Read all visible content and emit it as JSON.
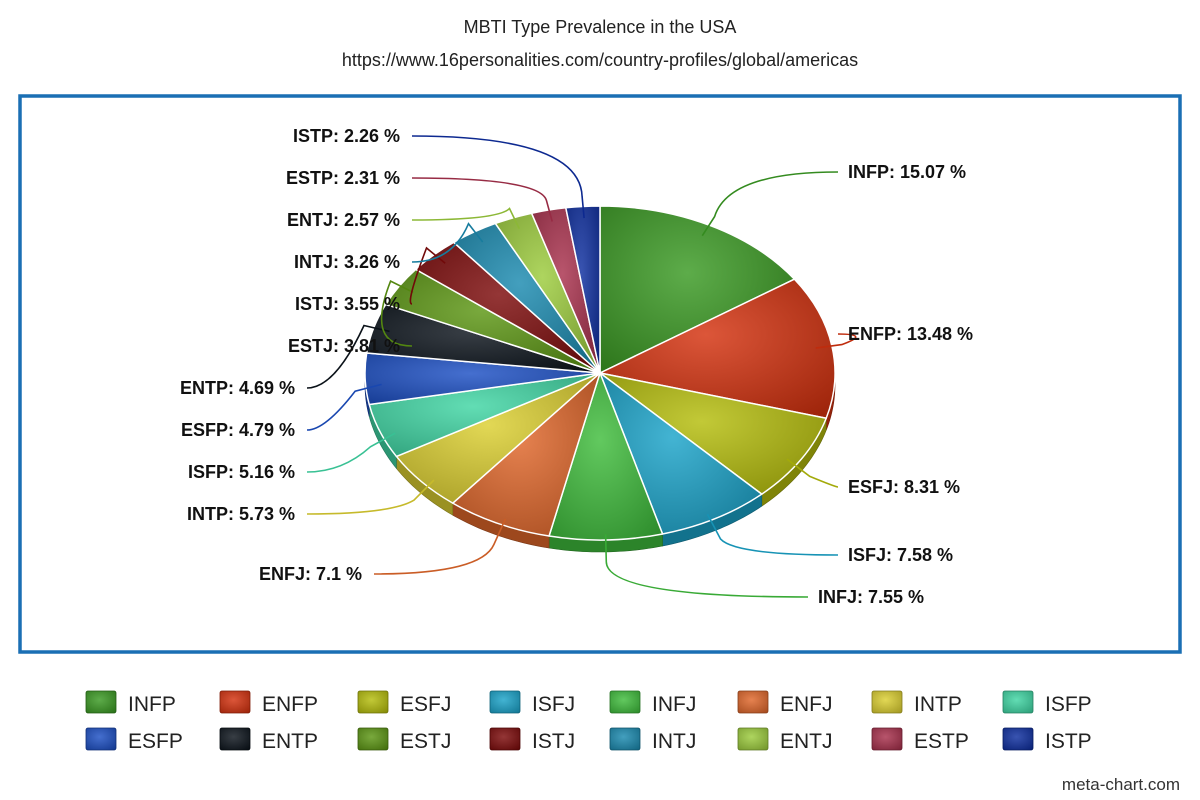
{
  "chart_data": {
    "type": "pie",
    "title": "MBTI Type Prevalence in the USA",
    "subtitle": "https://www.16personalities.com/country-profiles/global/americas",
    "credit": "meta-chart.com",
    "legend_position": "bottom",
    "slices": [
      {
        "name": "INFP",
        "label": "INFP: 15.07 %",
        "value": 15.07,
        "color": "#3a9a22"
      },
      {
        "name": "ENFP",
        "label": "ENFP: 13.48 %",
        "value": 13.48,
        "color": "#d4310e"
      },
      {
        "name": "ESFJ",
        "label": "ESFJ: 8.31 %",
        "value": 8.31,
        "color": "#b5bd0b"
      },
      {
        "name": "ISFJ",
        "label": "ISFJ: 7.58 %",
        "value": 7.58,
        "color": "#1aa3c9"
      },
      {
        "name": "INFJ",
        "label": "INFJ: 7.55 %",
        "value": 7.55,
        "color": "#3fbd3c"
      },
      {
        "name": "ENFJ",
        "label": "ENFJ: 7.1 %",
        "value": 7.1,
        "color": "#e0672a"
      },
      {
        "name": "INTP",
        "label": "INTP: 5.73 %",
        "value": 5.73,
        "color": "#dccf30"
      },
      {
        "name": "ISFP",
        "label": "ISFP: 5.16 %",
        "value": 5.16,
        "color": "#3fd6a4"
      },
      {
        "name": "ESFP",
        "label": "ESFP: 4.79 %",
        "value": 4.79,
        "color": "#1c4fc4"
      },
      {
        "name": "ENTP",
        "label": "ENTP: 4.69 %",
        "value": 4.69,
        "color": "#0c141c"
      },
      {
        "name": "ESTJ",
        "label": "ESTJ: 3.81 %",
        "value": 3.81,
        "color": "#5c9612"
      },
      {
        "name": "ISTJ",
        "label": "ISTJ: 3.55 %",
        "value": 3.55,
        "color": "#7d0a0a"
      },
      {
        "name": "INTJ",
        "label": "INTJ: 3.26 %",
        "value": 3.26,
        "color": "#1a8ab0"
      },
      {
        "name": "ENTJ",
        "label": "ENTJ: 2.57 %",
        "value": 2.57,
        "color": "#9ccc3c"
      },
      {
        "name": "ESTP",
        "label": "ESTP: 2.31 %",
        "value": 2.31,
        "color": "#a8304c"
      },
      {
        "name": "ISTP",
        "label": "ISTP: 2.26 %",
        "value": 2.26,
        "color": "#0e2ea0"
      }
    ]
  }
}
